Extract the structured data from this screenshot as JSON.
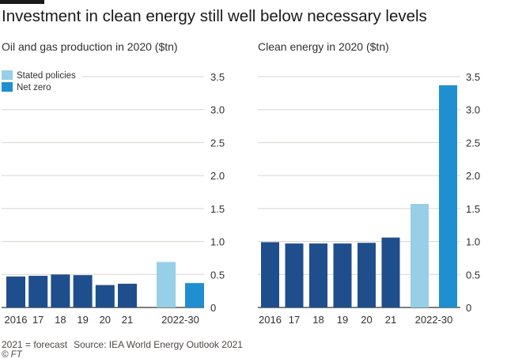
{
  "title": "Investment in clean energy still well below necessary levels",
  "footer": {
    "note": "2021 = forecast",
    "source": "Source: IEA World Energy Outlook 2021",
    "credit": "© FT"
  },
  "legend": [
    {
      "label": "Stated policies",
      "color": "#96cfe6"
    },
    {
      "label": "Net zero",
      "color": "#1f8fd1"
    }
  ],
  "colors": {
    "historical": "#1f4e8c",
    "stated_policies": "#96cfe6",
    "net_zero": "#1f8fd1",
    "grid": "#d9d4cf",
    "axis": "#33302e"
  },
  "chart_data": [
    {
      "type": "bar",
      "title": "Oil and gas production in 2020 ($tn)",
      "categories": [
        "2016",
        "17",
        "18",
        "19",
        "20",
        "21"
      ],
      "values": [
        0.47,
        0.48,
        0.5,
        0.49,
        0.34,
        0.36
      ],
      "scenario_label": "2022-30",
      "scenarios": [
        {
          "name": "Stated policies",
          "value": 0.69
        },
        {
          "name": "Net zero",
          "value": 0.37
        }
      ],
      "ylim": [
        0,
        3.5
      ],
      "yticks": [
        "0",
        "0.5",
        "1.0",
        "1.5",
        "2.0",
        "2.5",
        "3.0",
        "3.5"
      ],
      "grid": true,
      "legend_position": "top-left"
    },
    {
      "type": "bar",
      "title": "Clean energy in 2020 ($tn)",
      "categories": [
        "2016",
        "17",
        "18",
        "19",
        "20",
        "21"
      ],
      "values": [
        0.99,
        0.97,
        0.97,
        0.97,
        0.98,
        1.06
      ],
      "scenario_label": "2022-30",
      "scenarios": [
        {
          "name": "Stated policies",
          "value": 1.57
        },
        {
          "name": "Net zero",
          "value": 3.37
        }
      ],
      "ylim": [
        0,
        3.5
      ],
      "yticks": [
        "0",
        "0.5",
        "1.0",
        "1.5",
        "2.0",
        "2.5",
        "3.0",
        "3.5"
      ],
      "grid": true
    }
  ]
}
